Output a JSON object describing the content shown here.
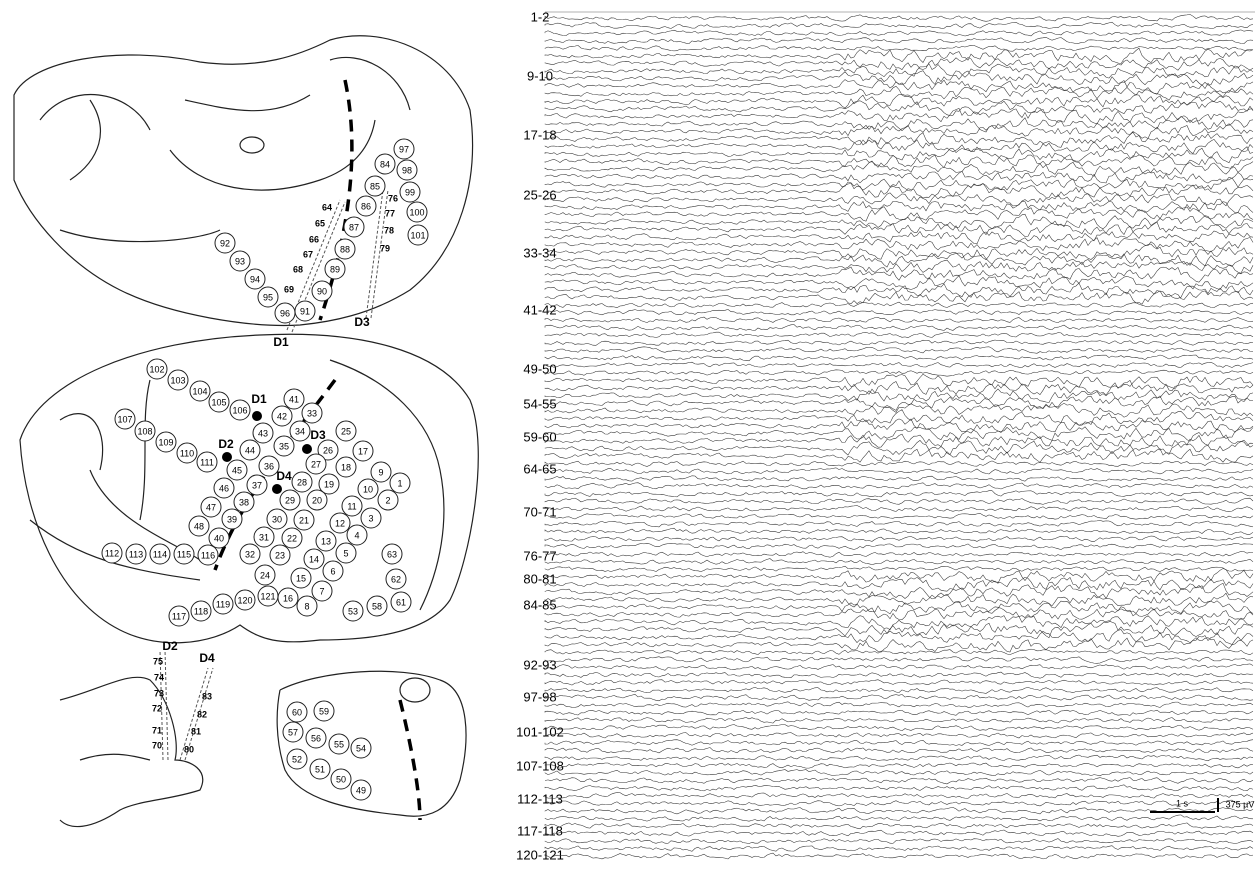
{
  "circled_contacts": [
    "92",
    "93",
    "94",
    "95",
    "96",
    "91",
    "90",
    "89",
    "88",
    "87",
    "86",
    "85",
    "84",
    "97",
    "98",
    "99",
    "100",
    "101",
    "102",
    "103",
    "104",
    "105",
    "106",
    "41",
    "42",
    "33",
    "34",
    "43",
    "107",
    "108",
    "109",
    "110",
    "111",
    "44",
    "35",
    "36",
    "25",
    "26",
    "17",
    "27",
    "18",
    "45",
    "28",
    "9",
    "1",
    "46",
    "37",
    "19",
    "10",
    "2",
    "47",
    "29",
    "20",
    "11",
    "3",
    "38",
    "48",
    "39",
    "30",
    "21",
    "12",
    "4",
    "40",
    "31",
    "22",
    "13",
    "5",
    "63",
    "112",
    "113",
    "114",
    "115",
    "116",
    "32",
    "23",
    "14",
    "6",
    "62",
    "24",
    "15",
    "7",
    "120",
    "121",
    "16",
    "8",
    "53",
    "58",
    "61",
    "117",
    "118",
    "119",
    "60",
    "59",
    "57",
    "56",
    "55",
    "54",
    "52",
    "51",
    "50",
    "49"
  ],
  "depth_contacts": [
    "64",
    "65",
    "66",
    "67",
    "68",
    "69",
    "76",
    "77",
    "78",
    "79",
    "75",
    "74",
    "73",
    "72",
    "71",
    "70",
    "83",
    "82",
    "81",
    "80"
  ],
  "depth_electrodes": [
    "D3",
    "D1",
    "D1",
    "D2",
    "D3",
    "D4",
    "D2",
    "D4"
  ],
  "channels": [
    "1-2",
    "9-10",
    "17-18",
    "25-26",
    "33-34",
    "41-42",
    "49-50",
    "54-55",
    "59-60",
    "64-65",
    "70-71",
    "76-77",
    "80-81",
    "84-85",
    "92-93",
    "97-98",
    "101-102",
    "107-108",
    "112-113",
    "117-118",
    "120-121"
  ],
  "scale_bar": {
    "time": "1 s",
    "amplitude": "375 µV"
  }
}
